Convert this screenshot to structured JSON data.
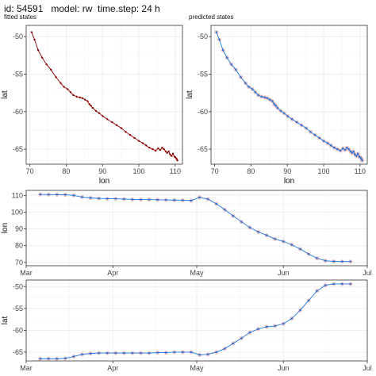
{
  "header": "id: 54591   model: rw  time.step: 24 h",
  "colors": {
    "fitted": "#8b0000",
    "predicted": "#1e73d9",
    "obs": "#f2b7b7",
    "grid": "#ebebeb",
    "border": "#333333"
  },
  "chart_data": [
    {
      "type": "scatter",
      "title": "fitted states",
      "xlabel": "lon",
      "ylabel": "lat",
      "xlim": [
        69,
        112
      ],
      "ylim": [
        -67,
        -48.5
      ],
      "xticks": [
        "70",
        "80",
        "90",
        "100",
        "110"
      ],
      "yticks": [
        "-50",
        "-55",
        "-60",
        "-65"
      ],
      "grid": true,
      "x": [
        70.5,
        71.3,
        72.3,
        73.4,
        74.6,
        75.8,
        77.2,
        78.5,
        79.4,
        80.4,
        81.2,
        82.0,
        82.9,
        83.8,
        84.5,
        85.2,
        85.9,
        86.4,
        86.8,
        87.3,
        88.2,
        89.1,
        90.1,
        91.3,
        92.6,
        93.9,
        95.2,
        96.4,
        97.6,
        98.8,
        100.0,
        101.1,
        102.0,
        102.9,
        103.8,
        104.6,
        105.3,
        105.9,
        106.4,
        106.9,
        107.4,
        107.8,
        108.2,
        108.6,
        109.0,
        109.4,
        109.8,
        110.1,
        110.4,
        110.6
      ],
      "y": [
        -49.4,
        -50.4,
        -51.8,
        -52.8,
        -53.7,
        -54.4,
        -55.4,
        -56.2,
        -56.7,
        -57.0,
        -57.4,
        -57.8,
        -58.0,
        -58.1,
        -58.2,
        -58.4,
        -58.6,
        -59.0,
        -59.2,
        -59.5,
        -59.9,
        -60.2,
        -60.6,
        -61.0,
        -61.4,
        -61.8,
        -62.2,
        -62.7,
        -63.1,
        -63.5,
        -63.9,
        -64.2,
        -64.5,
        -64.8,
        -65.0,
        -65.2,
        -64.9,
        -65.1,
        -64.8,
        -65.0,
        -65.3,
        -65.5,
        -65.3,
        -65.7,
        -65.9,
        -65.6,
        -66.0,
        -66.1,
        -66.3,
        -66.5
      ]
    },
    {
      "type": "scatter",
      "title": "predicted states",
      "xlabel": "lon",
      "ylabel": "lat",
      "xlim": [
        69,
        112
      ],
      "ylim": [
        -67,
        -48.5
      ],
      "xticks": [
        "70",
        "80",
        "90",
        "100",
        "110"
      ],
      "yticks": [
        "-50",
        "-55",
        "-60",
        "-65"
      ],
      "grid": true,
      "x": [
        70.5,
        71.3,
        72.3,
        73.4,
        74.6,
        75.8,
        77.2,
        78.5,
        79.4,
        80.4,
        81.2,
        82.0,
        82.9,
        83.8,
        84.5,
        85.2,
        85.9,
        86.4,
        86.8,
        87.3,
        88.2,
        89.1,
        90.1,
        91.3,
        92.6,
        93.9,
        95.2,
        96.4,
        97.6,
        98.8,
        100.0,
        101.1,
        102.0,
        102.9,
        103.8,
        104.6,
        105.3,
        105.9,
        106.4,
        106.9,
        107.4,
        107.8,
        108.2,
        108.6,
        109.0,
        109.4,
        109.8,
        110.1,
        110.4,
        110.6
      ],
      "y": [
        -49.4,
        -50.4,
        -51.8,
        -52.8,
        -53.7,
        -54.4,
        -55.4,
        -56.2,
        -56.7,
        -57.0,
        -57.4,
        -57.8,
        -58.0,
        -58.1,
        -58.2,
        -58.4,
        -58.6,
        -59.0,
        -59.2,
        -59.5,
        -59.9,
        -60.2,
        -60.6,
        -61.0,
        -61.4,
        -61.8,
        -62.2,
        -62.7,
        -63.1,
        -63.5,
        -63.9,
        -64.2,
        -64.5,
        -64.8,
        -65.0,
        -65.2,
        -64.9,
        -65.1,
        -64.8,
        -65.0,
        -65.3,
        -65.5,
        -65.3,
        -65.7,
        -65.9,
        -65.6,
        -66.0,
        -66.1,
        -66.3,
        -66.5
      ]
    },
    {
      "type": "scatter",
      "xlabel": "",
      "ylabel": "lon",
      "xlim": [
        "2000-03-01",
        "2000-07-01"
      ],
      "ylim": [
        68,
        113
      ],
      "xticks": [
        "Mar",
        "Apr",
        "May",
        "Jun",
        "Jul"
      ],
      "yticks": [
        "110",
        "100",
        "90",
        "80",
        "70"
      ],
      "grid": true,
      "x": [
        "2000-03-06",
        "2000-03-09",
        "2000-03-12",
        "2000-03-15",
        "2000-03-18",
        "2000-03-21",
        "2000-03-24",
        "2000-03-27",
        "2000-03-30",
        "2000-04-02",
        "2000-04-05",
        "2000-04-08",
        "2000-04-11",
        "2000-04-14",
        "2000-04-17",
        "2000-04-20",
        "2000-04-23",
        "2000-04-26",
        "2000-04-29",
        "2000-05-02",
        "2000-05-05",
        "2000-05-08",
        "2000-05-11",
        "2000-05-14",
        "2000-05-17",
        "2000-05-20",
        "2000-05-23",
        "2000-05-26",
        "2000-05-29",
        "2000-06-01",
        "2000-06-04",
        "2000-06-07",
        "2000-06-10",
        "2000-06-13",
        "2000-06-16",
        "2000-06-19",
        "2000-06-22",
        "2000-06-25"
      ],
      "y": [
        110.6,
        110.5,
        110.5,
        110.4,
        110.0,
        109.0,
        108.5,
        108.2,
        108.0,
        108.0,
        107.8,
        107.6,
        107.5,
        107.5,
        107.4,
        107.3,
        107.2,
        107.1,
        106.9,
        108.8,
        107.8,
        105.0,
        101.5,
        97.8,
        94.2,
        90.8,
        88.2,
        86.2,
        84.0,
        82.5,
        80.5,
        78.0,
        75.0,
        72.5,
        71.0,
        70.6,
        70.5,
        70.5
      ]
    },
    {
      "type": "scatter",
      "xlabel": "",
      "ylabel": "lat",
      "xlim": [
        "2000-03-01",
        "2000-07-01"
      ],
      "ylim": [
        -67,
        -48.5
      ],
      "xticks": [
        "Mar",
        "Apr",
        "May",
        "Jun",
        "Jul"
      ],
      "yticks": [
        "-50",
        "-55",
        "-60",
        "-65"
      ],
      "grid": true,
      "x": [
        "2000-03-06",
        "2000-03-09",
        "2000-03-12",
        "2000-03-15",
        "2000-03-18",
        "2000-03-21",
        "2000-03-24",
        "2000-03-27",
        "2000-03-30",
        "2000-04-02",
        "2000-04-05",
        "2000-04-08",
        "2000-04-11",
        "2000-04-14",
        "2000-04-17",
        "2000-04-20",
        "2000-04-23",
        "2000-04-26",
        "2000-04-29",
        "2000-05-02",
        "2000-05-05",
        "2000-05-08",
        "2000-05-11",
        "2000-05-14",
        "2000-05-17",
        "2000-05-20",
        "2000-05-23",
        "2000-05-26",
        "2000-05-29",
        "2000-06-01",
        "2000-06-04",
        "2000-06-07",
        "2000-06-10",
        "2000-06-13",
        "2000-06-16",
        "2000-06-19",
        "2000-06-22",
        "2000-06-25"
      ],
      "y": [
        -66.5,
        -66.5,
        -66.5,
        -66.4,
        -66.0,
        -65.5,
        -65.3,
        -65.2,
        -65.2,
        -65.2,
        -65.2,
        -65.2,
        -65.2,
        -65.2,
        -65.1,
        -65.1,
        -65.0,
        -65.0,
        -65.0,
        -65.6,
        -65.5,
        -65.0,
        -64.2,
        -63.0,
        -61.8,
        -60.5,
        -59.7,
        -59.2,
        -59.0,
        -58.5,
        -57.3,
        -55.4,
        -53.2,
        -51.0,
        -49.7,
        -49.4,
        -49.4,
        -49.4
      ]
    }
  ]
}
